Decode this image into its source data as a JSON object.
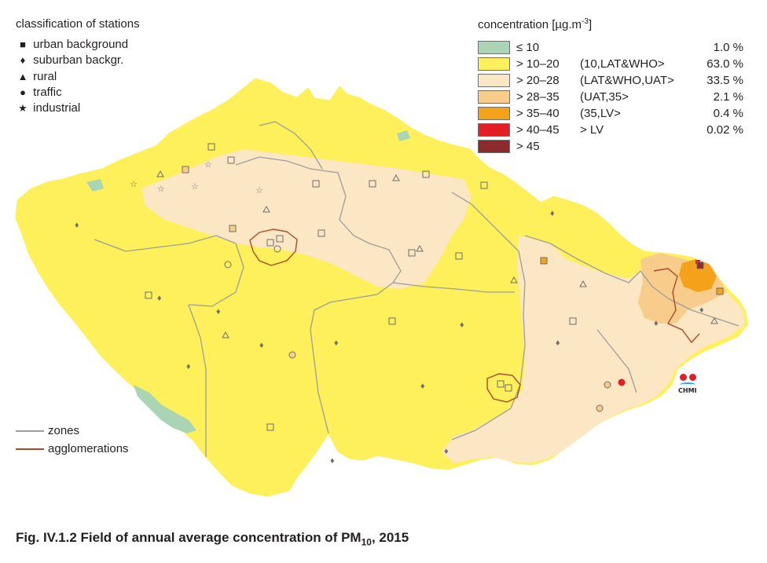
{
  "stations_legend": {
    "title": "classification of stations",
    "items": [
      {
        "symbol": "■",
        "label": "urban background"
      },
      {
        "symbol": "♦",
        "label": "suburban backgr."
      },
      {
        "symbol": "▲",
        "label": "rural"
      },
      {
        "symbol": "●",
        "label": "traffic"
      },
      {
        "symbol": "★",
        "label": "industrial"
      }
    ]
  },
  "concentration_legend": {
    "title": "concentration [µg.m",
    "title_sup": "-3",
    "title_end": "]",
    "classes": [
      {
        "range": "≤ 10",
        "interval": "",
        "percent": "1.0 %",
        "color": "#a9d5b5"
      },
      {
        "range": "> 10–20",
        "interval": "(10,LAT&WHO>",
        "percent": "63.0 %",
        "color": "#fdf05a"
      },
      {
        "range": "> 20–28",
        "interval": "(LAT&WHO,UAT>",
        "percent": "33.5 %",
        "color": "#fbe7c3"
      },
      {
        "range": "> 28–35",
        "interval": "(UAT,35>",
        "percent": "2.1 %",
        "color": "#f8cc8b"
      },
      {
        "range": "> 35–40",
        "interval": "(35,LV>",
        "percent": "0.4 %",
        "color": "#f3a21a"
      },
      {
        "range": "> 40–45",
        "interval": "> LV",
        "percent": "0.02 %",
        "color": "#e31e24"
      },
      {
        "range": "> 45",
        "interval": "",
        "percent": "",
        "color": "#8b2b2b"
      }
    ]
  },
  "lines_legend": {
    "zones": {
      "label": "zones",
      "color": "#9d9d9d"
    },
    "agglomerations": {
      "label": "agglomerations",
      "color": "#a94a2b"
    }
  },
  "logo": {
    "text": "CHMI"
  },
  "caption": {
    "prefix": "Fig. IV.1.2  Field of annual average concentration of PM",
    "sub": "10",
    "suffix": ", 2015"
  }
}
